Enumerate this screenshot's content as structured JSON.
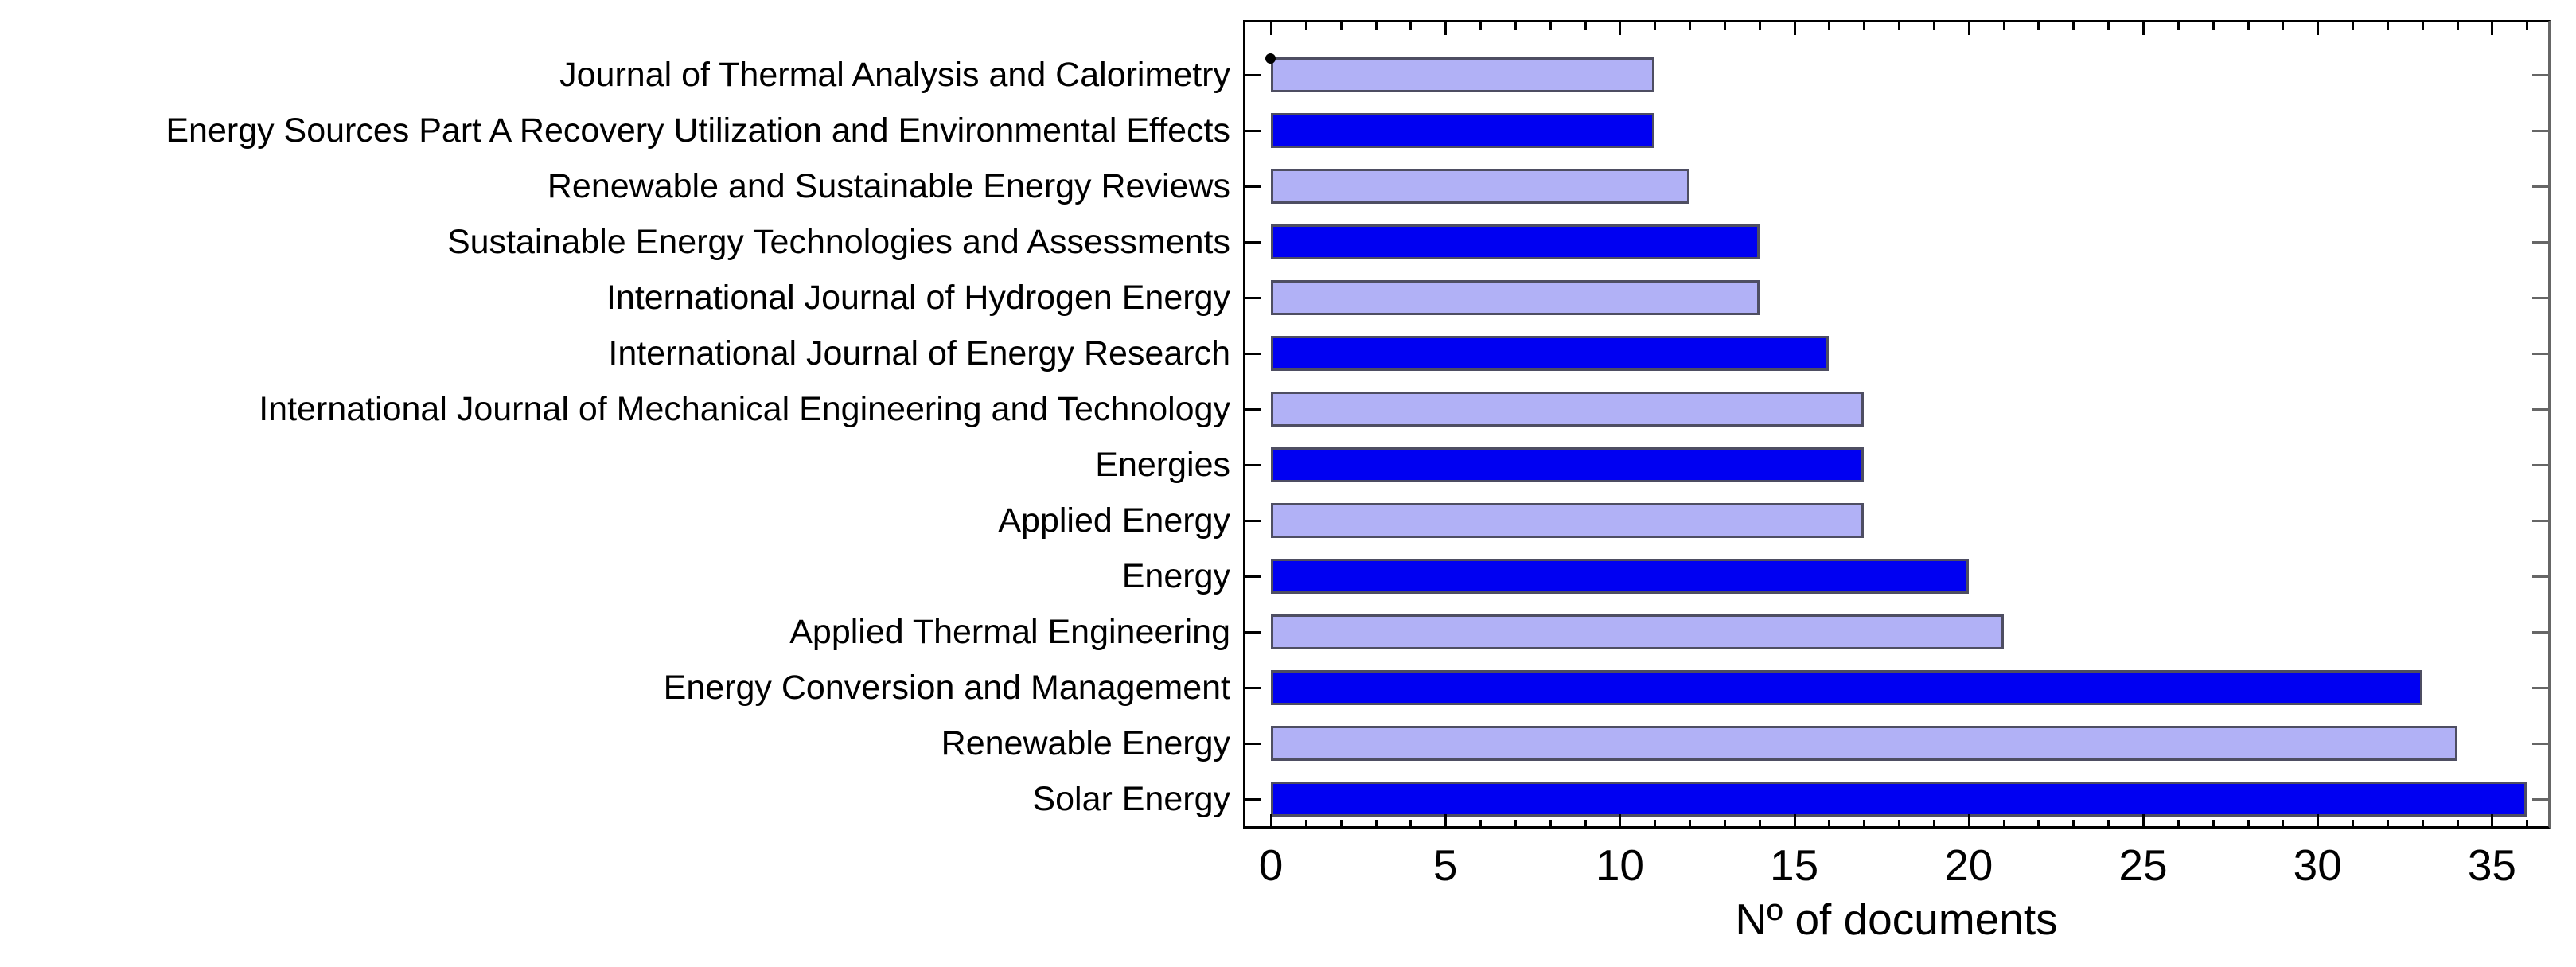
{
  "figure": {
    "background": "#ffffff"
  },
  "chart_data": {
    "type": "bar",
    "orientation": "horizontal",
    "title": "",
    "xlabel": "Nº of documents",
    "ylabel": "",
    "categories": [
      "Journal of Thermal Analysis and Calorimetry",
      "Energy Sources Part A Recovery Utilization and Environmental Effects",
      "Renewable and Sustainable Energy Reviews",
      "Sustainable Energy Technologies and Assessments",
      "International Journal of Hydrogen Energy",
      "International Journal of Energy Research",
      "International Journal of Mechanical Engineering and Technology",
      "Energies",
      "Applied Energy",
      "Energy",
      "Applied Thermal Engineering",
      "Energy Conversion and Management",
      "Renewable Energy",
      "Solar Energy"
    ],
    "values": [
      11,
      11,
      12,
      14,
      14,
      16,
      17,
      17,
      17,
      20,
      21,
      33,
      34,
      36
    ],
    "bar_fills": [
      "#b1b1f6",
      "#0000f2",
      "#b1b1f6",
      "#0000f2",
      "#b1b1f6",
      "#0000f2",
      "#b1b1f6",
      "#0000f2",
      "#b1b1f6",
      "#0000f2",
      "#b1b1f6",
      "#0000f2",
      "#b1b1f6",
      "#0000f2"
    ],
    "fill_palette_alternating": [
      "#b1b1f6",
      "#0000f2"
    ],
    "bar_edge_color": "#4e4e62",
    "xlim": [
      -0.73,
      36.61
    ],
    "xticks_major": [
      0,
      5,
      10,
      15,
      20,
      25,
      30,
      35
    ],
    "xtick_labels": [
      "0",
      "5",
      "10",
      "15",
      "20",
      "25",
      "30",
      "35"
    ],
    "xticks_minor_step": 1,
    "grid": false,
    "legend": false,
    "axis_colors": {
      "left": "#000000",
      "bottom": "#000000",
      "top": "#000000",
      "right": "#666666"
    },
    "marker_dot": {
      "x": 0,
      "category_index": 0,
      "color": "#000000"
    }
  }
}
